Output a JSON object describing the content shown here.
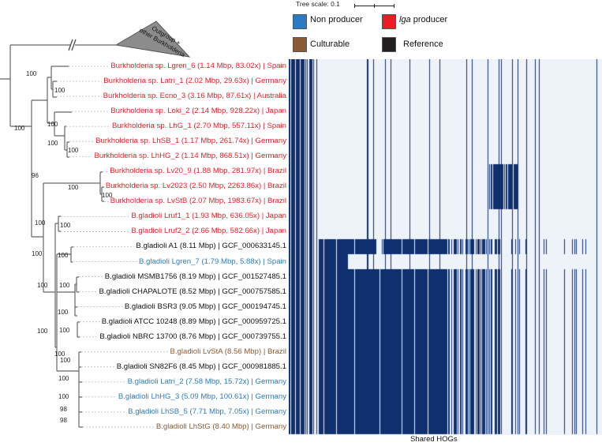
{
  "tree_scale": {
    "label": "Tree scale: 0.1"
  },
  "legend": [
    {
      "label": "Non producer",
      "color": "#2b7bc2"
    },
    {
      "label_italic": "lga",
      "label": " producer",
      "color": "#ec1c24"
    },
    {
      "label": "Culturable",
      "color": "#8a5a36"
    },
    {
      "label": "Reference",
      "color": "#231f20"
    }
  ],
  "outgroup": {
    "line1": "Outgroup +",
    "line2": "other Burkholderia"
  },
  "category_colors": {
    "lga": "#ec1c24",
    "non": "#2b7bc2",
    "cult": "#8a5a36",
    "ref": "#111111"
  },
  "taxa": [
    {
      "label": "Burkholderia sp. Lgren_6 (1.14 Mbp, 83.02x) | Spain",
      "cat": "lga"
    },
    {
      "label": "Burkholderia sp. Latri_1 (2.02 Mbp, 29.63x) | Germany",
      "cat": "lga"
    },
    {
      "label": "Burkholderia sp. Ecno_3 (3.16 Mbp, 87.61x) | Australia",
      "cat": "lga"
    },
    {
      "label": "Burkholderia sp. Loki_2 (2.14 Mbp, 928.22x) | Japan",
      "cat": "lga"
    },
    {
      "label": "Burkholderia sp. LhG_1 (2.70 Mbp, 557.11x) | Spain",
      "cat": "lga"
    },
    {
      "label": "Burkholderia sp. LhSB_1 (1.17 Mbp, 261.74x) | Germany",
      "cat": "lga"
    },
    {
      "label": "Burkholderia sp. LhHG_2 (1.14 Mbp, 868.51x) | Germany",
      "cat": "lga"
    },
    {
      "label": "Burkholderia sp. Lv20_9 (1.88 Mbp, 281.97x) | Brazil",
      "cat": "lga"
    },
    {
      "label": "Burkholderia sp. Lv2023 (2.50 Mbp, 2263.86x) | Brazil",
      "cat": "lga"
    },
    {
      "label": "Burkholderia sp. LvStB (2.07 Mbp, 1983.67x) | Brazil",
      "cat": "lga"
    },
    {
      "label": "B.gladioli Lruf1_1 (1.93 Mbp, 636.05x) | Japan",
      "cat": "lga"
    },
    {
      "label": "B.gladioli Lruf2_2 (2.66 Mbp, 582.66x) | Japan",
      "cat": "lga"
    },
    {
      "label": "B.gladioli A1 (8.11 Mbp) | GCF_000633145.1",
      "cat": "ref"
    },
    {
      "label": "B.gladioli Lgren_7 (1.79 Mbp, 5.88x) | Spain",
      "cat": "non"
    },
    {
      "label": "B.gladioli MSMB1756 (8.19 Mbp) | GCF_001527485.1",
      "cat": "ref"
    },
    {
      "label": "B.gladioli CHAPALOTE (8.52 Mbp) | GCF_000757585.1",
      "cat": "ref"
    },
    {
      "label": "B.gladioli BSR3 (9.05 Mbp) | GCF_000194745.1",
      "cat": "ref"
    },
    {
      "label": "B.gladioli ATCC 10248 (8.89 Mbp) | GCF_000959725.1",
      "cat": "ref"
    },
    {
      "label": "B.gladioli NBRC 13700 (8.76 Mbp) | GCF_000739755.1",
      "cat": "ref"
    },
    {
      "label": "B.gladioli LvStA (8.56 Mbp) | Brazil",
      "cat": "cult"
    },
    {
      "label": "B.gladioli SN82F6 (8.45 Mbp) | GCF_000981885.1",
      "cat": "ref"
    },
    {
      "label": "B.gladioli Latri_2 (7.58 Mbp, 15.72x) | Germany",
      "cat": "non"
    },
    {
      "label": "B.gladioli LhHG_3 (5.09 Mbp, 100.61x) | Germany",
      "cat": "non"
    },
    {
      "label": "B.gladioli LhSB_5 (7.71 Mbp, 7.05x) | Germany",
      "cat": "non"
    },
    {
      "label": "B.gladioli LhStG (8.40 Mbp) | Germany",
      "cat": "cult"
    }
  ],
  "bootstrap": [
    "100",
    "100",
    "100",
    "100",
    "100",
    "100",
    "96",
    "100",
    "100",
    "100",
    "100",
    "100",
    "100",
    "100",
    "100",
    "100",
    "100",
    "100",
    "100",
    "100",
    "100",
    "100",
    "98",
    "98"
  ],
  "heatmap": {
    "xlabel": "Shared HOGs",
    "present_color": "#0f2f6e",
    "absent_color": "#eef3fa"
  }
}
